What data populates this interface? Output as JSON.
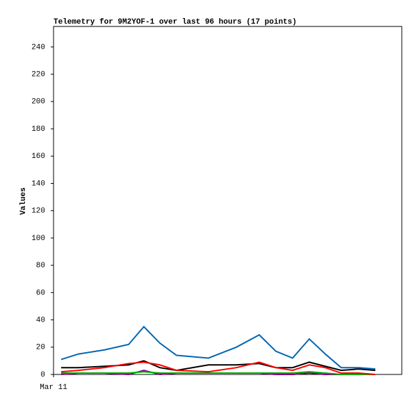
{
  "chart_data": {
    "type": "line",
    "title": "Telemetry for 9M2YOF-1 over last 96 hours (17 points)",
    "ylabel": "Values",
    "x": [
      2.1,
      6.9,
      14.0,
      20.7,
      24.9,
      29.3,
      33.9,
      42.7,
      50.4,
      56.7,
      61.3,
      65.9,
      70.5,
      74.9,
      79.3,
      84.1,
      88.7
    ],
    "xlim": [
      0,
      96
    ],
    "xticks": [
      {
        "value": 0,
        "label": "Mar 11"
      }
    ],
    "ylim": [
      0,
      255
    ],
    "yticks": [
      0,
      20,
      40,
      60,
      80,
      100,
      120,
      140,
      160,
      180,
      200,
      220,
      240
    ],
    "series": [
      {
        "color": "#0066b3",
        "values": [
          11,
          15,
          18,
          22,
          35,
          23,
          14,
          12,
          20,
          29,
          17,
          12,
          26,
          15,
          5,
          5,
          4
        ]
      },
      {
        "color": "#ff0000",
        "values": [
          2,
          3,
          5,
          8,
          9,
          7,
          3,
          2,
          5,
          9,
          5,
          3,
          7,
          5,
          1,
          1,
          0
        ]
      },
      {
        "color": "#000000",
        "values": [
          5,
          5,
          6,
          7,
          10,
          5,
          3,
          7,
          7,
          8,
          5,
          5,
          9,
          6,
          3,
          4,
          3
        ]
      },
      {
        "color": "#00aa00",
        "values": [
          1,
          1,
          1,
          1,
          2,
          1,
          1,
          1,
          1,
          1,
          1,
          1,
          2,
          1,
          0,
          0,
          0
        ]
      },
      {
        "color": "#800080",
        "values": [
          0,
          1,
          1,
          0,
          3,
          0,
          1,
          1,
          1,
          1,
          0,
          0,
          1,
          0,
          0,
          0,
          0
        ]
      }
    ]
  }
}
